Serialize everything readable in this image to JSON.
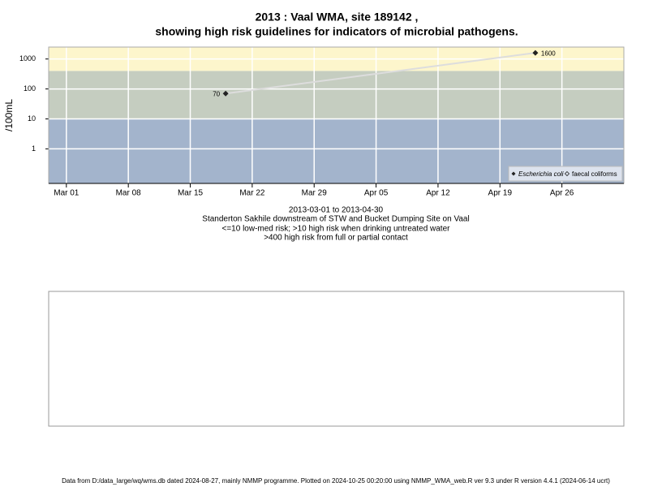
{
  "chart_data": {
    "type": "line",
    "title": [
      "2013 : Vaal WMA, site 189142 ,",
      "showing high risk guidelines for indicators of microbial pathogens."
    ],
    "y_label": "/100mL",
    "log_y": true,
    "grid": true,
    "xlim": [
      "2013-02-27",
      "2013-05-03"
    ],
    "xticks": [
      {
        "value": "2013-03-01",
        "label": "Mar 01"
      },
      {
        "value": "2013-03-08",
        "label": "Mar 08"
      },
      {
        "value": "2013-03-15",
        "label": "Mar 15"
      },
      {
        "value": "2013-03-22",
        "label": "Mar 22"
      },
      {
        "value": "2013-03-29",
        "label": "Mar 29"
      },
      {
        "value": "2013-04-05",
        "label": "Apr 05"
      },
      {
        "value": "2013-04-12",
        "label": "Apr 12"
      },
      {
        "value": "2013-04-19",
        "label": "Apr 19"
      },
      {
        "value": "2013-04-26",
        "label": "Apr 26"
      }
    ],
    "ylim": [
      0.07,
      2500
    ],
    "yticks": [
      1,
      10,
      100,
      1000
    ],
    "risk_bands": [
      {
        "max": 10,
        "color": "#a3b4cc"
      },
      {
        "min": 10,
        "max": 400,
        "color": "#c5cdc0"
      },
      {
        "min": 400,
        "color": "#fdf6cc"
      }
    ],
    "series": [
      {
        "name": "Escherichia coli",
        "color": "#222222",
        "line_color": "#dddddd",
        "x": [
          "2013-03-19",
          "2013-04-23"
        ],
        "values": [
          70,
          1600
        ]
      },
      {
        "name": "faecal coliforms",
        "color": "#222222",
        "x": [],
        "values": []
      }
    ],
    "legend": "bottom-right",
    "captions": [
      "2013-03-01 to 2013-04-30",
      "Standerton Sakhile downstream of STW and Bucket Dumping Site on Vaal",
      "<=10 low-med risk; >10 high risk when drinking untreated water",
      ">400 high risk from full or partial contact"
    ],
    "footer": "Data from D:/data_large/wq/wms.db dated 2024-08-27, mainly NMMP programme. Plotted on 2024-10-25 00:20:00 using NMMP_WMA_web.R ver 9.3 under R version 4.4.1 (2024-06-14 ucrt)"
  }
}
